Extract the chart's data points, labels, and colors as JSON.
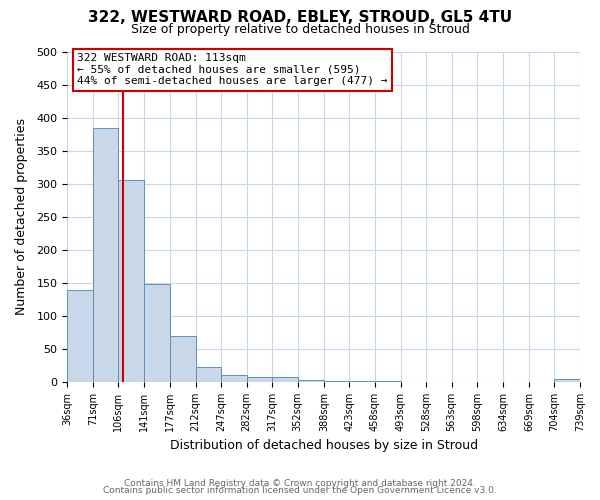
{
  "title": "322, WESTWARD ROAD, EBLEY, STROUD, GL5 4TU",
  "subtitle": "Size of property relative to detached houses in Stroud",
  "xlabel": "Distribution of detached houses by size in Stroud",
  "ylabel": "Number of detached properties",
  "bar_edges": [
    36,
    71,
    106,
    141,
    177,
    212,
    247,
    282,
    317,
    352,
    388,
    423,
    458,
    493,
    528,
    563,
    598,
    634,
    669,
    704,
    739
  ],
  "bar_heights": [
    140,
    385,
    305,
    149,
    70,
    23,
    10,
    7,
    7,
    3,
    2,
    2,
    2,
    0,
    0,
    0,
    0,
    0,
    0,
    5
  ],
  "bar_color": "#c8d8e8",
  "bar_edge_color": "#6090b8",
  "property_line_x": 113,
  "property_line_color": "#cc0000",
  "ylim": [
    0,
    500
  ],
  "xlim_left": 36,
  "xlim_right": 739,
  "annotation_line1": "322 WESTWARD ROAD: 113sqm",
  "annotation_line2": "← 55% of detached houses are smaller (595)",
  "annotation_line3": "44% of semi-detached houses are larger (477) →",
  "footnote1": "Contains HM Land Registry data © Crown copyright and database right 2024.",
  "footnote2": "Contains public sector information licensed under the Open Government Licence v3.0.",
  "background_color": "#ffffff",
  "grid_color": "#c8d8e8",
  "tick_labels": [
    "36sqm",
    "71sqm",
    "106sqm",
    "141sqm",
    "177sqm",
    "212sqm",
    "247sqm",
    "282sqm",
    "317sqm",
    "352sqm",
    "388sqm",
    "423sqm",
    "458sqm",
    "493sqm",
    "528sqm",
    "563sqm",
    "598sqm",
    "634sqm",
    "669sqm",
    "704sqm",
    "739sqm"
  ],
  "yticks": [
    0,
    50,
    100,
    150,
    200,
    250,
    300,
    350,
    400,
    450,
    500
  ],
  "title_fontsize": 11,
  "subtitle_fontsize": 9,
  "axis_label_fontsize": 9,
  "tick_fontsize": 7,
  "annotation_fontsize": 8,
  "footnote_fontsize": 6.5
}
